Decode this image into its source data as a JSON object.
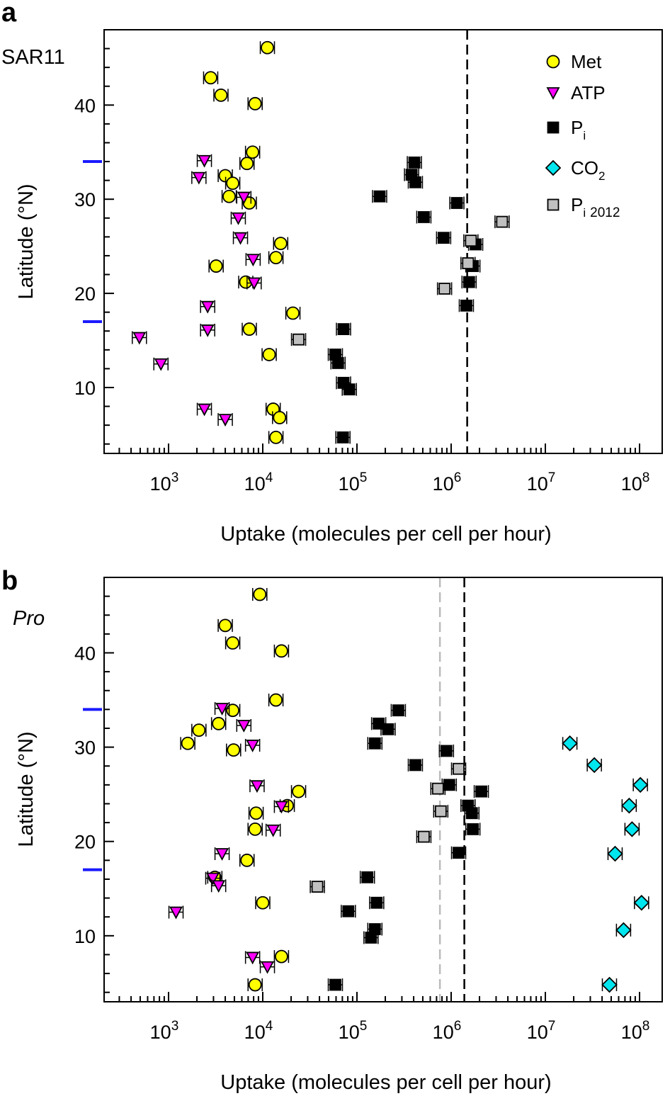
{
  "chart_data": [
    {
      "type": "scatter",
      "panel_label": "a",
      "organism": "SAR11",
      "organism_italic": false,
      "xlabel": "Uptake (molecules per cell per hour)",
      "ylabel": "Latitude (°N)",
      "xscale": "log",
      "xlim": [
        207,
        174000000
      ],
      "ylim": [
        3,
        48
      ],
      "xticks": [
        "3",
        "4",
        "5",
        "6",
        "7",
        "8"
      ],
      "yticks": [
        10,
        20,
        30,
        40
      ],
      "grid": false,
      "legend": {
        "placement": "top-right",
        "entries": [
          {
            "key": "met",
            "label": "Met",
            "sub": "",
            "after": ""
          },
          {
            "key": "atp",
            "label": "ATP",
            "sub": "",
            "after": ""
          },
          {
            "key": "pi",
            "label": "P",
            "sub": "i",
            "after": ""
          },
          {
            "key": "co2",
            "label": "CO",
            "sub": "2",
            "after": ""
          },
          {
            "key": "pi2012",
            "label": "P",
            "sub": "i",
            "after": "2012"
          }
        ]
      },
      "axis_markers_latitude": [
        34,
        17
      ],
      "vlines": [
        {
          "x": 1480000,
          "color": "#aaaaaa"
        },
        {
          "x": 1480000,
          "color": "#000000"
        }
      ],
      "series": [
        {
          "key": "met",
          "name": "Met",
          "marker": "circle",
          "color": "#ffff00",
          "points": [
            [
              11200,
              46.1
            ],
            [
              2800,
              42.9
            ],
            [
              3600,
              41.05
            ],
            [
              8300,
              40.15
            ],
            [
              7800,
              35.0
            ],
            [
              6800,
              33.8
            ],
            [
              4000,
              32.5
            ],
            [
              4800,
              31.7
            ],
            [
              4400,
              30.3
            ],
            [
              7200,
              29.6
            ],
            [
              15500,
              25.3
            ],
            [
              13800,
              23.8
            ],
            [
              3200,
              22.9
            ],
            [
              6600,
              21.2
            ],
            [
              20900,
              17.9
            ],
            [
              7200,
              16.2
            ],
            [
              11700,
              13.5
            ],
            [
              12900,
              7.7
            ],
            [
              15100,
              6.8
            ],
            [
              13800,
              4.7
            ]
          ]
        },
        {
          "key": "atp",
          "name": "ATP",
          "marker": "triangle-down",
          "color": "#ff00ff",
          "points": [
            [
              2400,
              34.1
            ],
            [
              2100,
              32.3
            ],
            [
              6300,
              30.2
            ],
            [
              5500,
              28.0
            ],
            [
              5800,
              25.9
            ],
            [
              7900,
              23.6
            ],
            [
              8100,
              21.1
            ],
            [
              2600,
              18.6
            ],
            [
              2600,
              16.1
            ],
            [
              490,
              15.3
            ],
            [
              830,
              12.5
            ],
            [
              2400,
              7.7
            ],
            [
              4000,
              6.6
            ]
          ]
        },
        {
          "key": "pi",
          "name": "Pi",
          "marker": "square",
          "color": "#000000",
          "points": [
            [
              407000,
              33.9
            ],
            [
              380000,
              32.6
            ],
            [
              417000,
              31.8
            ],
            [
              174000,
              30.3
            ],
            [
              1150000,
              29.6
            ],
            [
              513000,
              28.1
            ],
            [
              832000,
              25.9
            ],
            [
              1820000,
              25.2
            ],
            [
              1700000,
              22.9
            ],
            [
              1550000,
              21.2
            ],
            [
              1450000,
              18.7
            ],
            [
              72000,
              16.2
            ],
            [
              59000,
              13.5
            ],
            [
              63000,
              12.6
            ],
            [
              72000,
              10.5
            ],
            [
              83000,
              9.8
            ],
            [
              71000,
              4.7
            ]
          ]
        },
        {
          "key": "pi2012",
          "name": "Pi 2012",
          "marker": "square",
          "color": "#c0c0c0",
          "points": [
            [
              3470000,
              27.6
            ],
            [
              1620000,
              25.6
            ],
            [
              1510000,
              23.2
            ],
            [
              851000,
              20.5
            ],
            [
              24000,
              15.1
            ]
          ]
        }
      ]
    },
    {
      "type": "scatter",
      "panel_label": "b",
      "organism": "Pro",
      "organism_italic": true,
      "xlabel": "Uptake (molecules per cell per hour)",
      "ylabel": "Latitude (°N)",
      "xscale": "log",
      "xlim": [
        207,
        174000000
      ],
      "ylim": [
        3,
        48
      ],
      "xticks": [
        "3",
        "4",
        "5",
        "6",
        "7",
        "8"
      ],
      "yticks": [
        10,
        20,
        30,
        40
      ],
      "grid": false,
      "axis_markers_latitude": [
        34,
        17
      ],
      "vlines": [
        {
          "x": 760000,
          "color": "#bbbbbb"
        },
        {
          "x": 1380000,
          "color": "#000000"
        }
      ],
      "series": [
        {
          "key": "met",
          "name": "Met",
          "marker": "circle",
          "color": "#ffff00",
          "points": [
            [
              9300,
              46.2
            ],
            [
              4000,
              42.9
            ],
            [
              4800,
              41.05
            ],
            [
              15800,
              40.2
            ],
            [
              13800,
              35.0
            ],
            [
              4800,
              33.9
            ],
            [
              3400,
              32.5
            ],
            [
              2100,
              31.8
            ],
            [
              1600,
              30.4
            ],
            [
              4900,
              29.7
            ],
            [
              24000,
              25.3
            ],
            [
              18200,
              23.8
            ],
            [
              8500,
              23.0
            ],
            [
              8300,
              21.3
            ],
            [
              6800,
              18.0
            ],
            [
              3100,
              16.2
            ],
            [
              10000,
              13.5
            ],
            [
              15800,
              7.8
            ],
            [
              8300,
              4.8
            ]
          ]
        },
        {
          "key": "atp",
          "name": "ATP",
          "marker": "triangle-down",
          "color": "#ff00ff",
          "points": [
            [
              3700,
              34.1
            ],
            [
              6300,
              32.3
            ],
            [
              7800,
              30.2
            ],
            [
              8700,
              25.9
            ],
            [
              15800,
              23.7
            ],
            [
              12900,
              21.2
            ],
            [
              3700,
              18.7
            ],
            [
              2950,
              16.1
            ],
            [
              3400,
              15.3
            ],
            [
              1200,
              12.5
            ],
            [
              7800,
              7.7
            ],
            [
              11200,
              6.7
            ]
          ]
        },
        {
          "key": "pi",
          "name": "Pi",
          "marker": "square",
          "color": "#000000",
          "points": [
            [
              275000,
              33.9
            ],
            [
              170000,
              32.5
            ],
            [
              214000,
              31.9
            ],
            [
              155000,
              30.4
            ],
            [
              891000,
              29.6
            ],
            [
              417000,
              28.1
            ],
            [
              955000,
              26.0
            ],
            [
              2090000,
              25.3
            ],
            [
              1510000,
              23.8
            ],
            [
              1660000,
              23.0
            ],
            [
              1700000,
              21.3
            ],
            [
              1200000,
              18.8
            ],
            [
              129000,
              16.2
            ],
            [
              81000,
              12.6
            ],
            [
              162000,
              13.5
            ],
            [
              155000,
              10.7
            ],
            [
              141000,
              9.8
            ],
            [
              59000,
              4.8
            ]
          ]
        },
        {
          "key": "pi2012",
          "name": "Pi 2012",
          "marker": "square",
          "color": "#c0c0c0",
          "points": [
            [
              1200000,
              27.7
            ],
            [
              724000,
              25.6
            ],
            [
              776000,
              23.2
            ],
            [
              513000,
              20.5
            ],
            [
              38000,
              15.2
            ]
          ]
        },
        {
          "key": "co2",
          "name": "CO2",
          "marker": "diamond",
          "color": "#00e5ee",
          "points": [
            [
              18200000,
              30.4
            ],
            [
              33100000,
              28.1
            ],
            [
              102000000,
              26.0
            ],
            [
              77600000,
              23.8
            ],
            [
              83200000,
              21.3
            ],
            [
              55000000,
              18.7
            ],
            [
              105000000,
              13.5
            ],
            [
              67600000,
              10.6
            ],
            [
              47900000,
              4.8
            ]
          ]
        }
      ]
    }
  ]
}
